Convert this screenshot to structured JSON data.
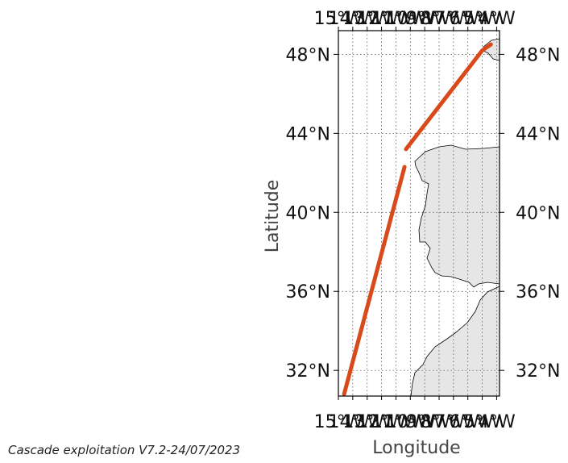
{
  "map": {
    "xlabel": "Longitude",
    "ylabel": "Latitude",
    "lat_ticks": [
      "48°N",
      "44°N",
      "40°N",
      "36°N",
      "32°N"
    ],
    "lat_tick_values": [
      48,
      44,
      40,
      36,
      32
    ],
    "lon_ticks": [
      "15°W",
      "14°W",
      "13°W",
      "12°W",
      "11°W",
      "10°W",
      "9°W",
      "8°W",
      "7°W",
      "6°W",
      "5°W",
      "4°W"
    ],
    "lon_tick_values": [
      -15,
      -14,
      -13,
      -12,
      -11,
      -10,
      -9,
      -8,
      -7,
      -6,
      -5,
      -4
    ],
    "lon_range": [
      -15,
      -3.8
    ],
    "lat_range": [
      30.7,
      49.2
    ],
    "grid": true,
    "land_color": "#e6e6e6",
    "track_color": "#d94a1a",
    "track": {
      "segment_1": [
        [
          -14.6,
          30.8
        ],
        [
          -10.4,
          42.3
        ]
      ],
      "segment_2": [
        [
          -10.3,
          43.2
        ],
        [
          -5.0,
          48.2
        ],
        [
          -4.4,
          48.5
        ]
      ]
    }
  },
  "footer": {
    "text": "Cascade exploitation V7.2-24/07/2023"
  }
}
